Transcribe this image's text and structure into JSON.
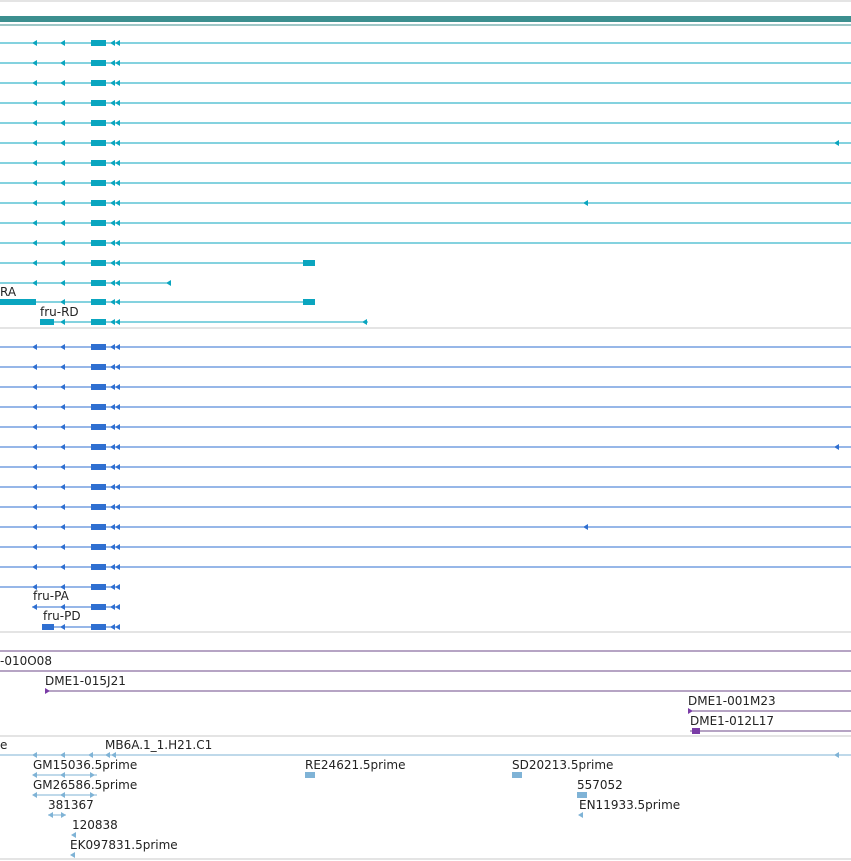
{
  "colors": {
    "transcript_teal": "#0aa5bf",
    "transcript_blue": "#2f6fd1",
    "clone_purple": "#7a3ca6",
    "est_light_blue": "#7fb3d6",
    "top_bar": "#3c8f8f",
    "separator": "#c8c8c8",
    "clone_line": "#6c4a8a"
  },
  "tracks": {
    "transcripts_a": {
      "labels": [
        "RA",
        "fru-RD"
      ]
    },
    "transcripts_b": {
      "labels": [
        "fru-PA",
        "fru-PD"
      ]
    },
    "clones": {
      "labels": [
        "-010O08",
        "DME1-015J21",
        "DME1-001M23",
        "DME1-012L17"
      ]
    },
    "ests": {
      "labels": [
        "e",
        "MB6A.1_1.H21.C1",
        "GM15036.5prime",
        "RE24621.5prime",
        "SD20213.5prime",
        "GM26586.5prime",
        "557052",
        "381367",
        "EN11933.5prime",
        "120838",
        "EK097831.5prime"
      ]
    }
  }
}
